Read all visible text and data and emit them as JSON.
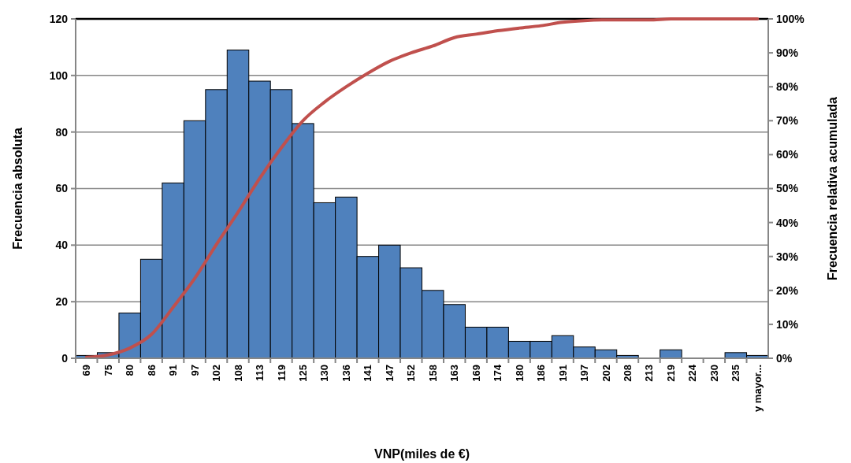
{
  "chart_data": {
    "type": "bar",
    "xlabel": "VNP(miles de €)",
    "ylabel": "Frecuencia absoluta",
    "y2label": "Frecuencia relativa acumulada",
    "categories": [
      "69",
      "75",
      "80",
      "86",
      "91",
      "97",
      "102",
      "108",
      "113",
      "119",
      "125",
      "130",
      "136",
      "141",
      "147",
      "152",
      "158",
      "163",
      "169",
      "174",
      "180",
      "186",
      "191",
      "197",
      "202",
      "208",
      "213",
      "219",
      "224",
      "230",
      "235",
      "y mayor..."
    ],
    "series": [
      {
        "color": "#4f81bd",
        "values": [
          1,
          2,
          16,
          35,
          62,
          84,
          95,
          109,
          98,
          95,
          83,
          55,
          57,
          36,
          40,
          32,
          24,
          19,
          11,
          11,
          6,
          6,
          8,
          4,
          3,
          1,
          0,
          3,
          0,
          0,
          2,
          1
        ]
      },
      {
        "type": "line",
        "axis": "y2",
        "color": "#c0504d",
        "values": [
          0.3,
          1,
          3,
          7,
          15,
          23.5,
          33.5,
          43,
          53,
          62,
          70,
          75.5,
          80,
          84,
          87.5,
          90,
          92,
          94.5,
          95.5,
          96.5,
          97.3,
          98,
          99,
          99.5,
          99.7,
          99.7,
          99.7,
          100,
          100,
          100,
          100,
          100
        ]
      }
    ],
    "ylim": [
      0,
      120
    ],
    "yticks": [
      0,
      20,
      40,
      60,
      80,
      100,
      120
    ],
    "y2lim": [
      0,
      100
    ],
    "y2ticks": [
      {
        "value": 0,
        "label": "0%"
      },
      {
        "value": 10,
        "label": "10%"
      },
      {
        "value": 20,
        "label": "20%"
      },
      {
        "value": 30,
        "label": "30%"
      },
      {
        "value": 40,
        "label": "40%"
      },
      {
        "value": 50,
        "label": "50%"
      },
      {
        "value": 60,
        "label": "60%"
      },
      {
        "value": 70,
        "label": "70%"
      },
      {
        "value": 80,
        "label": "80%"
      },
      {
        "value": 90,
        "label": "90%"
      },
      {
        "value": 100,
        "label": "100%"
      }
    ],
    "grid": "y",
    "marker": "none",
    "line_style": "solid"
  }
}
